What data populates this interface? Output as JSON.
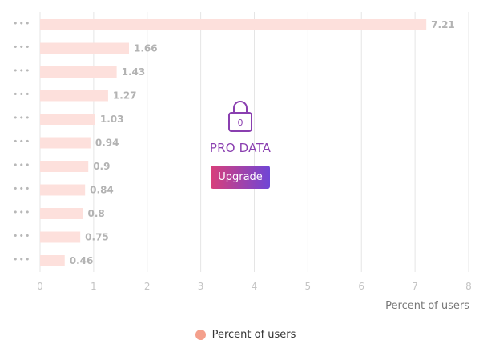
{
  "chart_data": {
    "type": "bar",
    "orientation": "horizontal",
    "categories": [
      "•••",
      "•••",
      "•••",
      "•••",
      "•••",
      "•••",
      "•••",
      "•••",
      "•••",
      "•••",
      "•••"
    ],
    "series": [
      {
        "name": "Percent of users",
        "values": [
          7.21,
          1.66,
          1.43,
          1.27,
          1.03,
          0.94,
          0.9,
          0.84,
          0.8,
          0.75,
          0.46
        ]
      }
    ],
    "data_labels": [
      "7.21",
      "1.66",
      "1.43",
      "1.27",
      "1.03",
      "0.94",
      "0.9",
      "0.84",
      "0.8",
      "0.75",
      "0.46"
    ],
    "x_ticks": [
      "0",
      "1",
      "2",
      "3",
      "4",
      "5",
      "6",
      "7",
      "8"
    ],
    "xlim": [
      0,
      8
    ],
    "xlabel": "Percent of users",
    "grid": true,
    "legend_position": "bottom",
    "bar_color": "#fde0dc",
    "legend_color": "#f4a08c"
  },
  "overlay": {
    "lock_icon": "lock-icon",
    "lock_digit": "0",
    "title": "PRO DATA",
    "button_label": "Upgrade",
    "title_color": "#8a3fb0"
  },
  "legend": {
    "label": "Percent of users"
  }
}
